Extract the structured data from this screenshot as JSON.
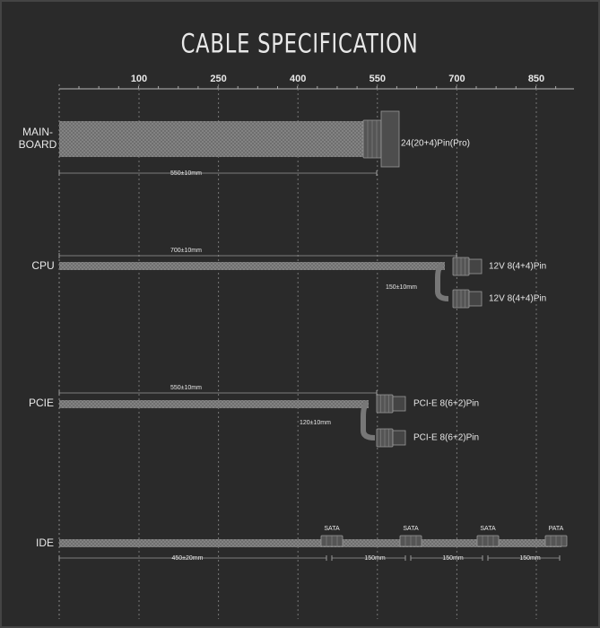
{
  "title": "CABLE SPECIFICATION",
  "axis": {
    "ticks": [
      100,
      250,
      400,
      550,
      700,
      850
    ]
  },
  "cables": [
    {
      "name_lines": [
        "MAIN-",
        "BOARD"
      ],
      "connectors": [
        "24(20+4)Pin(Pro)"
      ],
      "lengths": [
        "550±10mm"
      ]
    },
    {
      "name_lines": [
        "CPU"
      ],
      "connectors": [
        "12V 8(4+4)Pin",
        "12V 8(4+4)Pin"
      ],
      "lengths": [
        "700±10mm",
        "150±10mm"
      ]
    },
    {
      "name_lines": [
        "PCIE"
      ],
      "connectors": [
        "PCI-E 8(6+2)Pin",
        "PCI-E 8(6+2)Pin"
      ],
      "lengths": [
        "550±10mm",
        "120±10mm"
      ]
    },
    {
      "name_lines": [
        "IDE"
      ],
      "connectors": [
        "SATA",
        "SATA",
        "SATA",
        "PATA"
      ],
      "lengths": [
        "450±20mm",
        "150mm",
        "150mm",
        "150mm"
      ]
    }
  ]
}
